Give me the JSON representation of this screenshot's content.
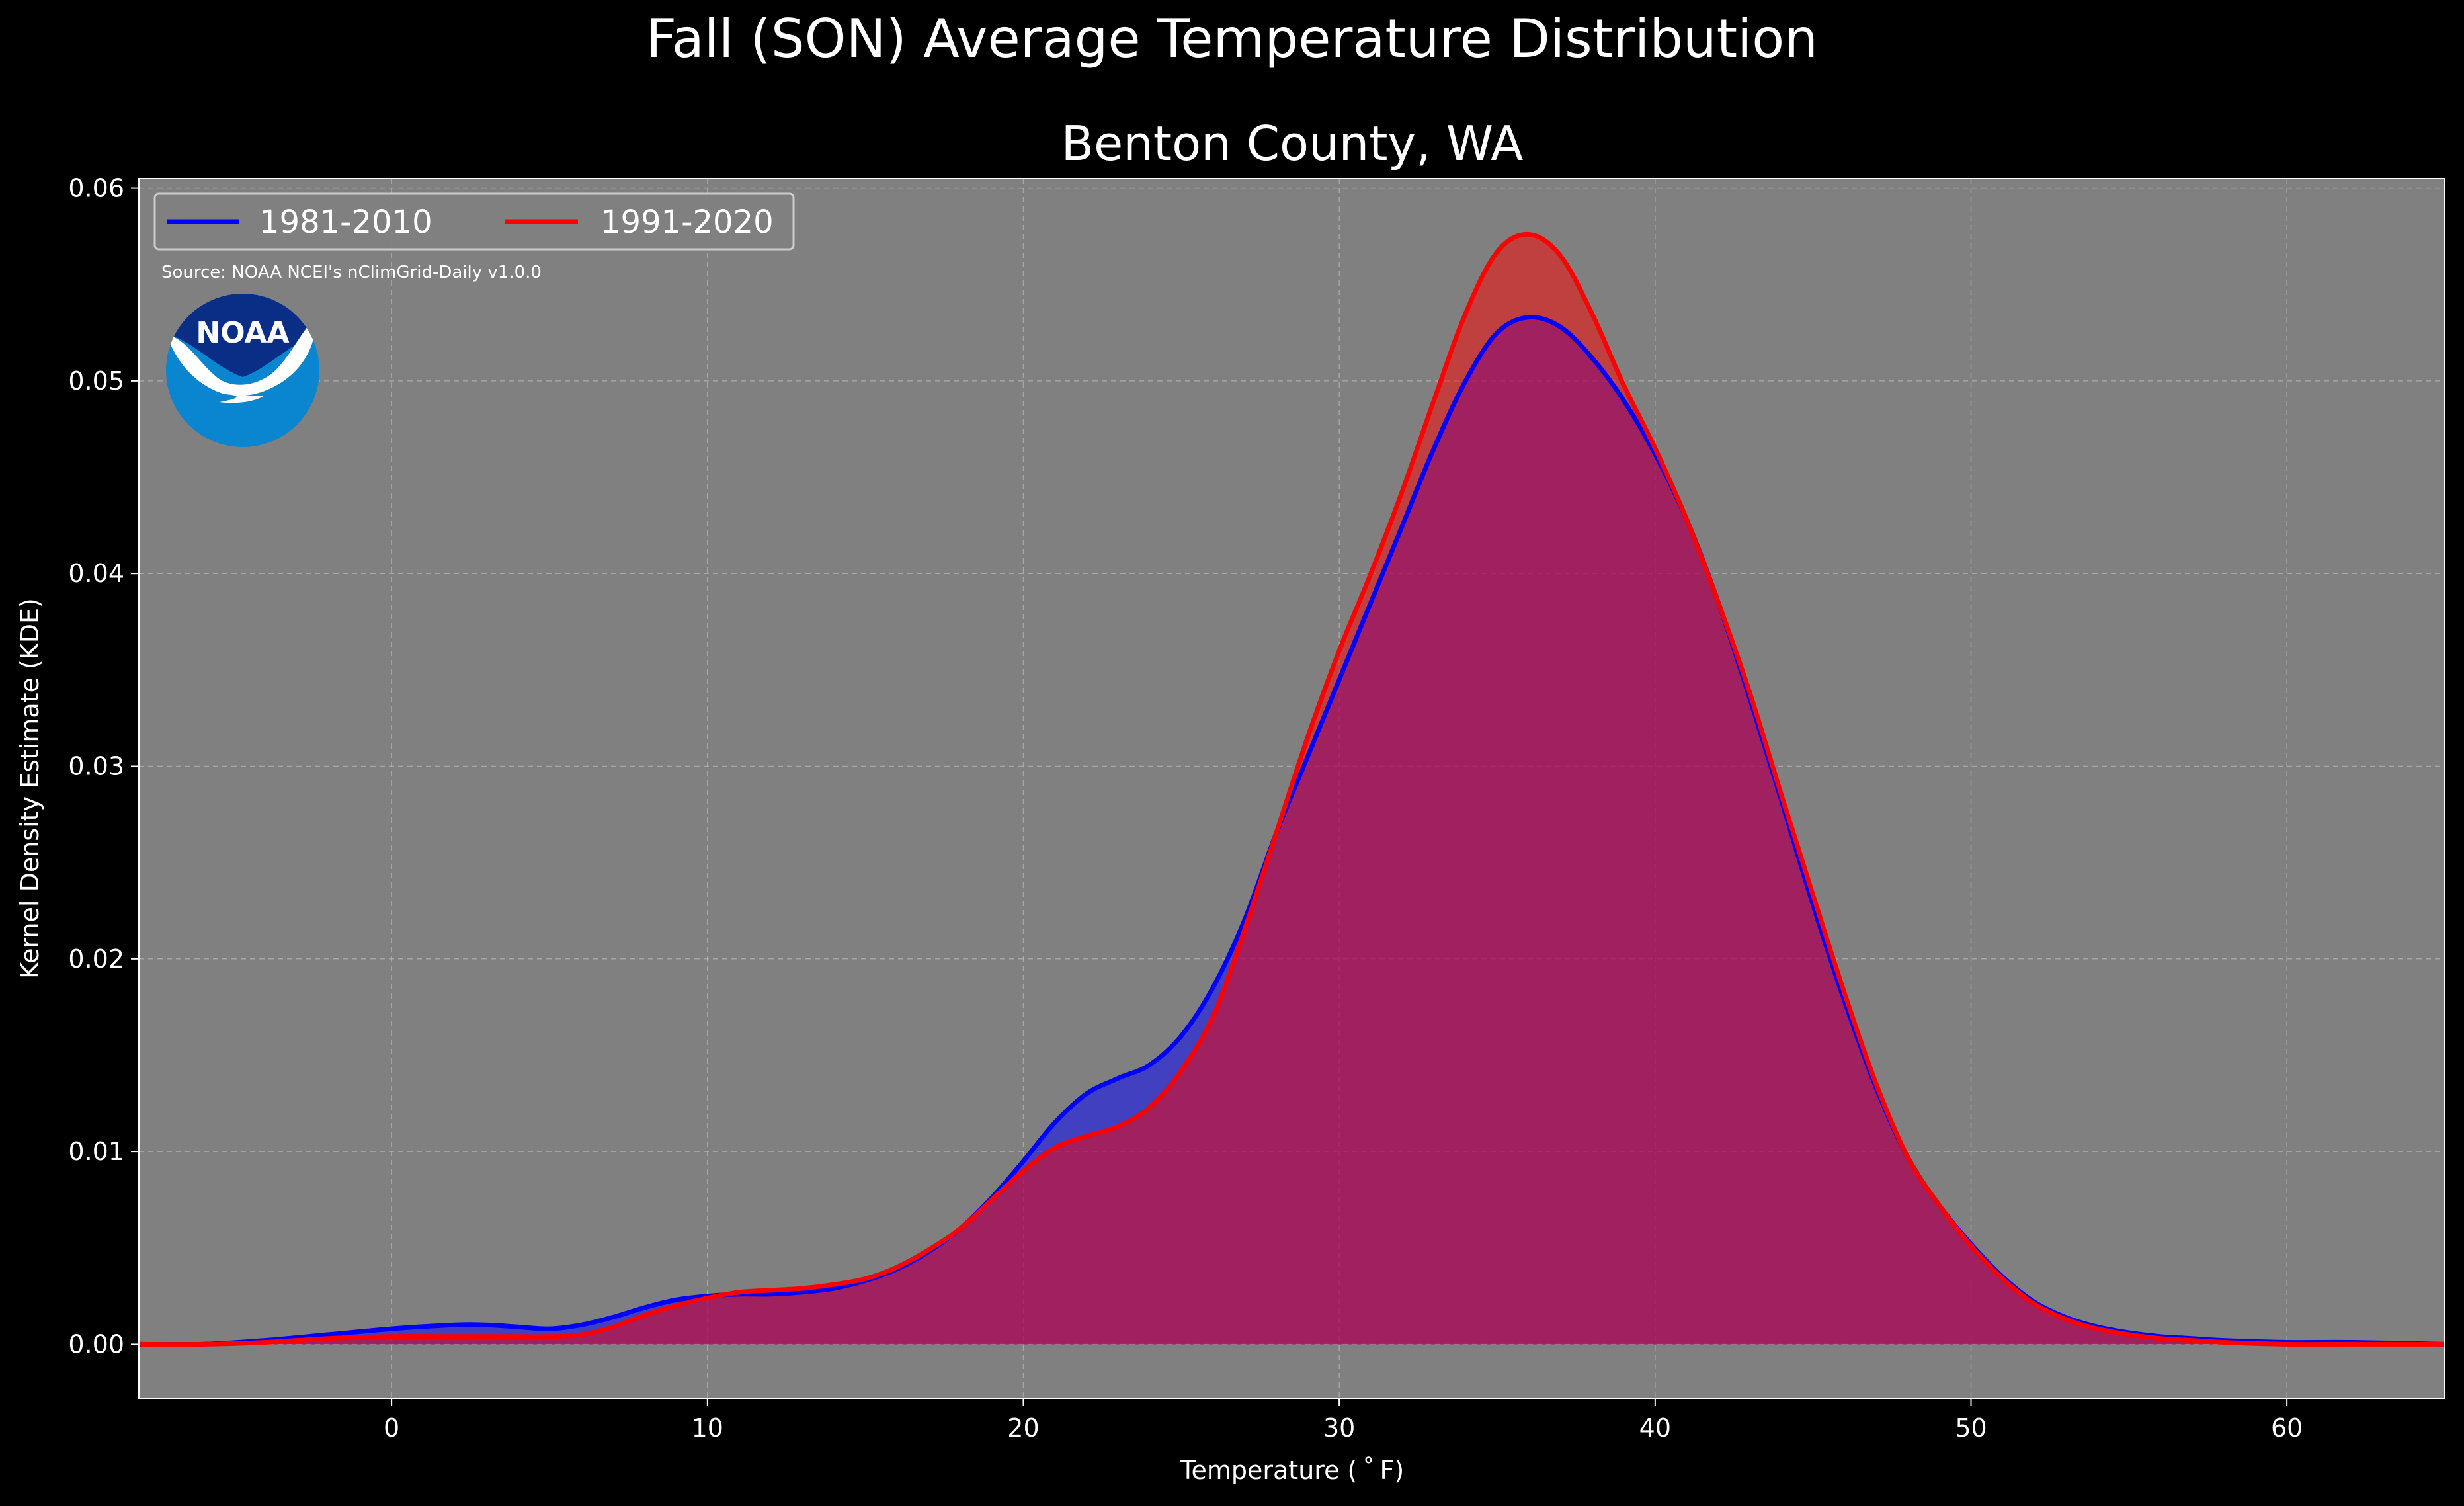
{
  "figure": {
    "suptitle": "Fall (SON) Average Temperature Distribution",
    "title": "Benton County, WA",
    "source": "Source: NOAA NCEI's nClimGrid-Daily v1.0.0",
    "logo_text": "NOAA"
  },
  "colors": {
    "figure_background": "#000000",
    "plot_background": "#808080",
    "grid": "#bfbfbf",
    "text": "#ffffff",
    "series_1981": "#0000ff",
    "series_1991": "#ff0000",
    "logo_dark_blue": "#0a2e86",
    "logo_light_blue": "#0a85cf"
  },
  "chart_data": {
    "type": "area",
    "title": "Benton County, WA",
    "xlabel": "Temperature ($^\\circ$F)",
    "xlabel_display": "Temperature ( ˚ F)",
    "ylabel": "Kernel Density Estimate (KDE)",
    "xlim": [
      -8,
      65
    ],
    "ylim": [
      -0.0028,
      0.0605
    ],
    "xticks": [
      0,
      10,
      20,
      30,
      40,
      50,
      60
    ],
    "yticks": [
      0.0,
      0.01,
      0.02,
      0.03,
      0.04,
      0.05,
      0.06
    ],
    "ytick_labels": [
      "0.00",
      "0.01",
      "0.02",
      "0.03",
      "0.04",
      "0.05",
      "0.06"
    ],
    "grid": true,
    "legend_position": "upper-left",
    "series": [
      {
        "name": "1981-2010",
        "color": "#0000ff",
        "x": [
          -8,
          -6,
          -4,
          -2,
          0,
          2,
          3,
          4,
          5,
          6,
          7,
          8,
          9,
          10,
          11,
          12,
          13,
          14,
          15,
          16,
          17,
          18,
          19,
          20,
          21,
          22,
          23,
          24,
          25,
          26,
          27,
          28,
          29,
          30,
          31,
          32,
          33,
          34,
          35,
          36,
          37,
          38,
          39,
          40,
          41,
          42,
          43,
          44,
          45,
          46,
          47,
          48,
          49,
          50,
          51,
          52,
          53,
          54,
          55,
          56,
          57,
          58,
          60,
          62,
          65
        ],
        "y": [
          0.0,
          0.0,
          0.0002,
          0.0005,
          0.0008,
          0.001,
          0.001,
          0.0009,
          0.0008,
          0.001,
          0.0014,
          0.0019,
          0.0023,
          0.0025,
          0.0026,
          0.0026,
          0.0027,
          0.0029,
          0.0033,
          0.0039,
          0.0048,
          0.006,
          0.0076,
          0.0095,
          0.0115,
          0.013,
          0.0138,
          0.0145,
          0.016,
          0.0185,
          0.022,
          0.0265,
          0.0305,
          0.0345,
          0.0385,
          0.0425,
          0.0465,
          0.05,
          0.0525,
          0.0533,
          0.0528,
          0.0512,
          0.049,
          0.0462,
          0.0428,
          0.0385,
          0.0335,
          0.0282,
          0.0228,
          0.0178,
          0.0133,
          0.0097,
          0.0072,
          0.0052,
          0.0035,
          0.0022,
          0.0014,
          0.0009,
          0.0006,
          0.0004,
          0.0003,
          0.0002,
          0.0001,
          0.0001,
          0.0
        ]
      },
      {
        "name": "1991-2020",
        "color": "#ff0000",
        "x": [
          -8,
          -6,
          -4,
          -2,
          0,
          2,
          3,
          4,
          5,
          6,
          7,
          8,
          9,
          10,
          11,
          12,
          13,
          14,
          15,
          16,
          17,
          18,
          19,
          20,
          21,
          22,
          23,
          24,
          25,
          26,
          27,
          28,
          29,
          30,
          31,
          32,
          33,
          34,
          35,
          36,
          37,
          38,
          39,
          40,
          41,
          42,
          43,
          44,
          45,
          46,
          47,
          48,
          49,
          50,
          51,
          52,
          53,
          54,
          55,
          56,
          57,
          58,
          60,
          62,
          65
        ],
        "y": [
          0.0,
          0.0,
          0.0001,
          0.0003,
          0.0004,
          0.0004,
          0.0004,
          0.0004,
          0.0004,
          0.0005,
          0.0009,
          0.0015,
          0.002,
          0.0024,
          0.0027,
          0.0028,
          0.0029,
          0.0031,
          0.0034,
          0.004,
          0.0049,
          0.006,
          0.0075,
          0.009,
          0.0102,
          0.0108,
          0.0113,
          0.0123,
          0.0142,
          0.017,
          0.0215,
          0.0265,
          0.0315,
          0.036,
          0.04,
          0.0443,
          0.049,
          0.0535,
          0.0567,
          0.0576,
          0.0565,
          0.0535,
          0.0498,
          0.0465,
          0.0428,
          0.0385,
          0.0338,
          0.0285,
          0.0233,
          0.0182,
          0.0135,
          0.0097,
          0.0072,
          0.0051,
          0.0034,
          0.0021,
          0.0013,
          0.0008,
          0.0005,
          0.0003,
          0.0002,
          0.0001,
          0.0,
          0.0,
          0.0
        ]
      }
    ]
  }
}
